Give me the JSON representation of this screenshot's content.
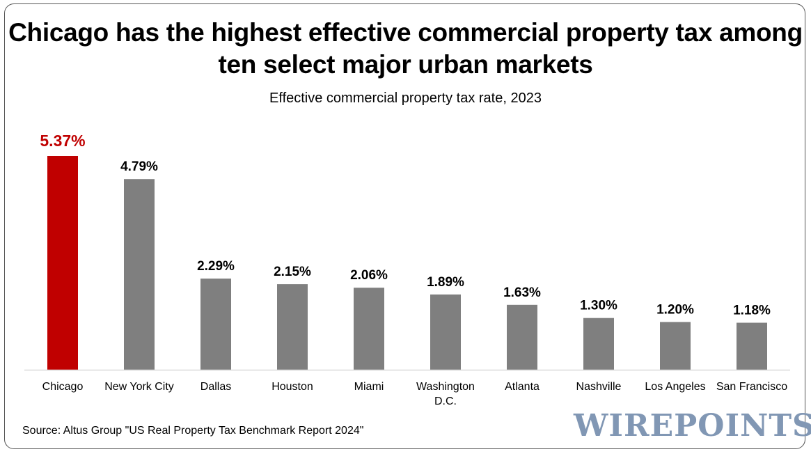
{
  "chart_data": {
    "type": "bar",
    "title": "Chicago has the highest effective commercial property tax among ten select major urban markets",
    "subtitle": "Effective commercial property tax rate, 2023",
    "categories": [
      "Chicago",
      "New York City",
      "Dallas",
      "Houston",
      "Miami",
      "Washington D.C.",
      "Atlanta",
      "Nashville",
      "Los Angeles",
      "San Francisco"
    ],
    "category_lines": [
      [
        "Chicago"
      ],
      [
        "New York City"
      ],
      [
        "Dallas"
      ],
      [
        "Houston"
      ],
      [
        "Miami"
      ],
      [
        "Washington",
        "D.C."
      ],
      [
        "Atlanta"
      ],
      [
        "Nashville"
      ],
      [
        "Los Angeles"
      ],
      [
        "San Francisco"
      ]
    ],
    "values": [
      5.37,
      4.79,
      2.29,
      2.15,
      2.06,
      1.89,
      1.63,
      1.3,
      1.2,
      1.18
    ],
    "data_labels": [
      "5.37%",
      "4.79%",
      "2.29%",
      "2.15%",
      "2.06%",
      "1.89%",
      "1.63%",
      "1.30%",
      "1.20%",
      "1.18%"
    ],
    "highlight_index": 0,
    "colors": {
      "highlight": "#c00000",
      "default": "#7f7f7f",
      "highlight_label": "#c00000",
      "label": "#000000"
    },
    "xlabel": "",
    "ylabel": "",
    "ylim": [
      0,
      5.37
    ],
    "grid": false,
    "legend": "none"
  },
  "source": "Source: Altus Group \"US Real Property Tax Benchmark Report 2024\"",
  "logo_text": "WIREPOINTS"
}
